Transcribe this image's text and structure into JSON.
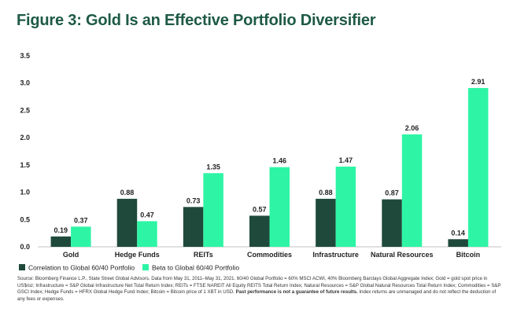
{
  "chart_data": {
    "type": "bar",
    "title": "Figure 3: Gold Is an Effective Portfolio Diversifier",
    "categories": [
      "Gold",
      "Hedge Funds",
      "REITs",
      "Commodities",
      "Infrastructure",
      "Natural Resources",
      "Bitcoin"
    ],
    "series": [
      {
        "name": "Correlation to Global 60/40 Portfolio",
        "color": "#1f4a3b",
        "values": [
          0.19,
          0.88,
          0.73,
          0.57,
          0.88,
          0.87,
          0.14
        ],
        "labels": [
          "0.19",
          "0.88",
          "0.73",
          "0.57",
          "0.88",
          "0.87",
          "0.14"
        ]
      },
      {
        "name": "Beta to Global 60/40 Portfolio",
        "color": "#2ef5a5",
        "values": [
          0.37,
          0.47,
          1.35,
          1.46,
          1.47,
          2.06,
          2.91
        ],
        "labels": [
          "0.37",
          "0.47",
          "1.35",
          "1.46",
          "1.47",
          "2.06",
          "2.91"
        ]
      }
    ],
    "yticks": [
      "0.0",
      "0.5",
      "1.0",
      "1.5",
      "2.0",
      "2.5",
      "3.0",
      "3.5"
    ],
    "ylim": [
      0,
      3.5
    ],
    "xlabel": "",
    "ylabel": "",
    "grid": false,
    "legend_position": "bottom-left"
  },
  "source": {
    "text": "Source: Bloomberg Finance L.P., State Street Global Advisors. Data from May 31, 2011–May 31, 2021. 60/40 Global Portfolio = 60% MSCI ACWI, 40% Bloomberg Barclays Global Aggregate Index; Gold = gold spot price in US$/oz; Infrastructure = S&P Global Infrastructure Net Total Return Index; REITs = FTSE NAREIT All Equity REITS Total Return Index; Natural Resources = S&P Global Natural Resources Total Return Index; Commodities = S&P GSCI Index; Hedge Funds = HFRX Global Hedge Fund Index; Bitcoin = Bitcoin price of 1 XBT in USD.",
    "bold_text": "Past performance is not a guarantee of future results.",
    "tail_text": "Index returns are unmanaged and do not reflect the deduction of any fees or expenses."
  }
}
